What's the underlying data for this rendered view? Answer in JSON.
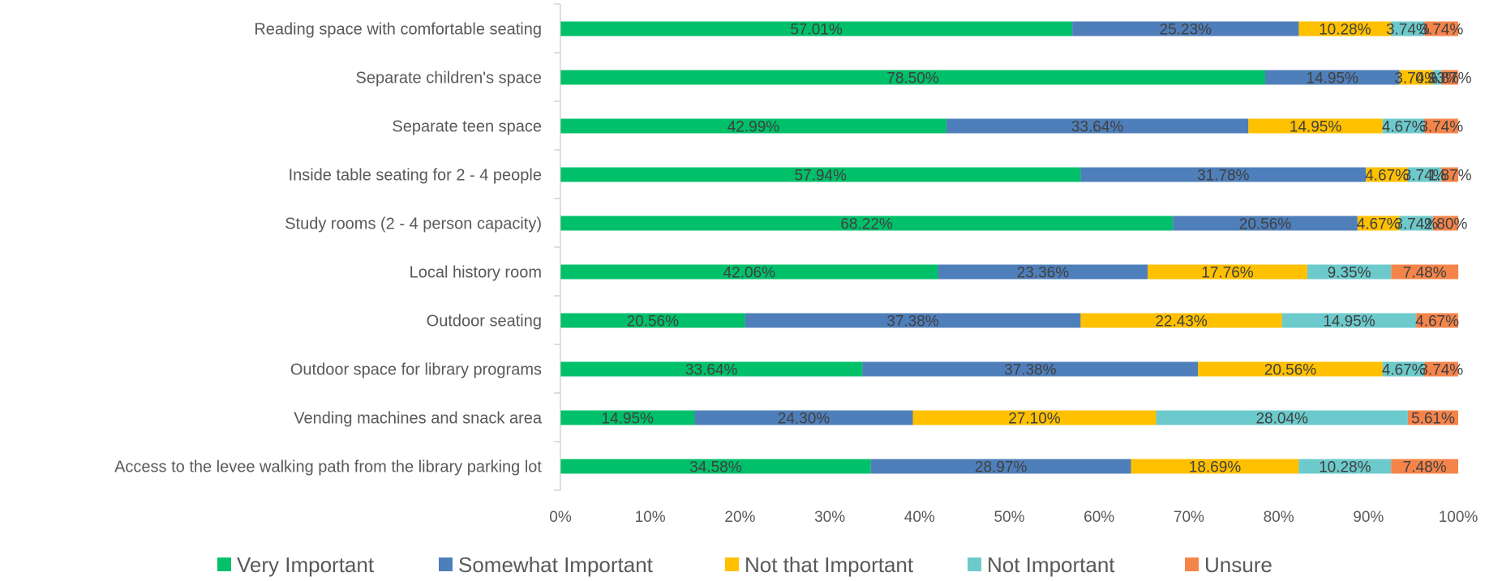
{
  "chart_data": {
    "type": "bar",
    "orientation": "horizontal",
    "stacked": "100%",
    "title": "",
    "xlabel": "",
    "ylabel": "",
    "xlim": [
      0,
      100
    ],
    "x_ticks": [
      "0%",
      "10%",
      "20%",
      "30%",
      "40%",
      "50%",
      "60%",
      "70%",
      "80%",
      "90%",
      "100%"
    ],
    "grid": false,
    "legend_position": "bottom",
    "categories": [
      "Reading space with comfortable seating",
      "Separate children's space",
      "Separate teen space",
      "Inside table seating for 2 - 4 people",
      "Study rooms (2 - 4 person capacity)",
      "Local history room",
      "Outdoor seating",
      "Outdoor space for library programs",
      "Vending machines and snack area",
      "Access to the levee walking path from the library parking lot"
    ],
    "series": [
      {
        "name": "Very Important",
        "color": "#00c06a",
        "values": [
          57.01,
          78.5,
          42.99,
          57.94,
          68.22,
          42.06,
          20.56,
          33.64,
          14.95,
          34.58
        ],
        "labels": [
          "57.01%",
          "78.50%",
          "42.99%",
          "57.94%",
          "68.22%",
          "42.06%",
          "20.56%",
          "33.64%",
          "14.95%",
          "34.58%"
        ]
      },
      {
        "name": "Somewhat Important",
        "color": "#4f7fba",
        "values": [
          25.23,
          14.95,
          33.64,
          31.78,
          20.56,
          23.36,
          37.38,
          37.38,
          24.3,
          28.97
        ],
        "labels": [
          "25.23%",
          "14.95%",
          "33.64%",
          "31.78%",
          "20.56%",
          "23.36%",
          "37.38%",
          "37.38%",
          "24.30%",
          "28.97%"
        ]
      },
      {
        "name": "Not that Important",
        "color": "#ffc000",
        "values": [
          10.28,
          3.74,
          14.95,
          4.67,
          4.67,
          17.76,
          22.43,
          20.56,
          27.1,
          18.69
        ],
        "labels": [
          "10.28%",
          "3.74%",
          "14.95%",
          "4.67%",
          "4.67%",
          "17.76%",
          "22.43%",
          "20.56%",
          "27.10%",
          "18.69%"
        ]
      },
      {
        "name": "Not Important",
        "color": "#6ccacc",
        "values": [
          3.74,
          0.93,
          4.67,
          3.74,
          3.74,
          9.35,
          14.95,
          4.67,
          28.04,
          10.28
        ],
        "labels": [
          "3.74%",
          "0.93%",
          "4.67%",
          "3.74%",
          "3.74%",
          "9.35%",
          "14.95%",
          "4.67%",
          "28.04%",
          "10.28%"
        ]
      },
      {
        "name": "Unsure",
        "color": "#f5844a",
        "values": [
          3.74,
          1.87,
          3.74,
          1.87,
          2.8,
          7.48,
          4.67,
          3.74,
          5.61,
          7.48
        ],
        "labels": [
          "3.74%",
          "1.87%",
          "3.74%",
          "1.87%",
          "2.80%",
          "7.48%",
          "4.67%",
          "3.74%",
          "5.61%",
          "7.48%"
        ]
      }
    ]
  }
}
